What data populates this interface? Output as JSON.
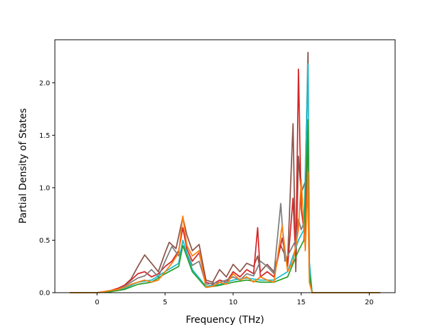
{
  "chart_data": {
    "type": "line",
    "title": "",
    "xlabel": "Frequency (THz)",
    "ylabel": "Partial Density of States",
    "xlim": [
      -3.1,
      21.9
    ],
    "ylim": [
      0.0,
      2.41
    ],
    "xticks": [
      0,
      5,
      10,
      15,
      20
    ],
    "xtick_labels": [
      "0",
      "5",
      "10",
      "15",
      "20"
    ],
    "yticks": [
      0.0,
      0.5,
      1.0,
      1.5,
      2.0
    ],
    "ytick_labels": [
      "0.0",
      "0.5",
      "1.0",
      "1.5",
      "2.0"
    ],
    "grid": false,
    "legend": "none",
    "x_range_of_curves": [
      -2.0,
      20.8
    ],
    "series": [
      {
        "color": "#8c564b",
        "points": [
          [
            -2.0,
            0
          ],
          [
            0.0,
            0
          ],
          [
            0.5,
            0.01
          ],
          [
            1.0,
            0.02
          ],
          [
            1.5,
            0.04
          ],
          [
            2.0,
            0.07
          ],
          [
            2.5,
            0.13
          ],
          [
            3.0,
            0.25
          ],
          [
            3.5,
            0.36
          ],
          [
            4.0,
            0.28
          ],
          [
            4.5,
            0.2
          ],
          [
            5.0,
            0.38
          ],
          [
            5.3,
            0.48
          ],
          [
            5.8,
            0.42
          ],
          [
            6.3,
            0.72
          ],
          [
            6.6,
            0.55
          ],
          [
            7.0,
            0.4
          ],
          [
            7.5,
            0.46
          ],
          [
            8.0,
            0.12
          ],
          [
            8.5,
            0.1
          ],
          [
            9.0,
            0.22
          ],
          [
            9.5,
            0.15
          ],
          [
            10.0,
            0.27
          ],
          [
            10.5,
            0.2
          ],
          [
            11.0,
            0.28
          ],
          [
            11.5,
            0.25
          ],
          [
            11.8,
            0.35
          ],
          [
            12.0,
            0.2
          ],
          [
            12.5,
            0.27
          ],
          [
            13.0,
            0.2
          ],
          [
            13.5,
            0.45
          ],
          [
            14.0,
            0.3
          ],
          [
            14.4,
            1.61
          ],
          [
            14.6,
            0.2
          ],
          [
            14.8,
            1.3
          ],
          [
            15.0,
            0.95
          ],
          [
            15.3,
            1.06
          ],
          [
            15.5,
            2.29
          ],
          [
            15.6,
            0.2
          ],
          [
            15.8,
            0.0
          ],
          [
            20.8,
            0.0
          ]
        ]
      },
      {
        "color": "#d62728",
        "points": [
          [
            -2.0,
            0
          ],
          [
            0.0,
            0
          ],
          [
            0.5,
            0.01
          ],
          [
            1.0,
            0.02
          ],
          [
            1.5,
            0.04
          ],
          [
            2.0,
            0.07
          ],
          [
            2.5,
            0.12
          ],
          [
            3.0,
            0.18
          ],
          [
            3.5,
            0.2
          ],
          [
            4.0,
            0.15
          ],
          [
            4.5,
            0.18
          ],
          [
            5.0,
            0.25
          ],
          [
            5.5,
            0.3
          ],
          [
            6.0,
            0.4
          ],
          [
            6.3,
            0.62
          ],
          [
            6.6,
            0.42
          ],
          [
            7.0,
            0.3
          ],
          [
            7.5,
            0.38
          ],
          [
            8.0,
            0.1
          ],
          [
            8.5,
            0.08
          ],
          [
            9.0,
            0.12
          ],
          [
            9.5,
            0.1
          ],
          [
            10.0,
            0.2
          ],
          [
            10.5,
            0.15
          ],
          [
            11.0,
            0.22
          ],
          [
            11.5,
            0.18
          ],
          [
            11.8,
            0.62
          ],
          [
            12.0,
            0.15
          ],
          [
            12.5,
            0.2
          ],
          [
            13.0,
            0.15
          ],
          [
            13.6,
            0.52
          ],
          [
            14.0,
            0.25
          ],
          [
            14.4,
            0.9
          ],
          [
            14.6,
            0.3
          ],
          [
            14.8,
            2.13
          ],
          [
            15.0,
            0.8
          ],
          [
            15.3,
            0.5
          ],
          [
            15.5,
            1.6
          ],
          [
            15.6,
            0.2
          ],
          [
            15.8,
            0.0
          ],
          [
            20.8,
            0.0
          ]
        ]
      },
      {
        "color": "#7f7f7f",
        "points": [
          [
            -2.0,
            0
          ],
          [
            0.0,
            0
          ],
          [
            0.5,
            0.01
          ],
          [
            1.0,
            0.02
          ],
          [
            1.5,
            0.03
          ],
          [
            2.0,
            0.06
          ],
          [
            2.5,
            0.1
          ],
          [
            3.0,
            0.14
          ],
          [
            3.5,
            0.16
          ],
          [
            4.0,
            0.22
          ],
          [
            4.5,
            0.15
          ],
          [
            5.0,
            0.3
          ],
          [
            5.5,
            0.44
          ],
          [
            6.0,
            0.35
          ],
          [
            6.3,
            0.45
          ],
          [
            6.6,
            0.38
          ],
          [
            7.0,
            0.26
          ],
          [
            7.5,
            0.3
          ],
          [
            8.0,
            0.08
          ],
          [
            8.5,
            0.09
          ],
          [
            9.0,
            0.1
          ],
          [
            9.5,
            0.12
          ],
          [
            10.0,
            0.15
          ],
          [
            10.5,
            0.12
          ],
          [
            11.0,
            0.18
          ],
          [
            11.5,
            0.16
          ],
          [
            12.0,
            0.3
          ],
          [
            12.5,
            0.25
          ],
          [
            13.0,
            0.18
          ],
          [
            13.5,
            0.85
          ],
          [
            13.8,
            0.3
          ],
          [
            14.2,
            0.4
          ],
          [
            14.6,
            0.5
          ],
          [
            14.8,
            0.7
          ],
          [
            15.0,
            0.6
          ],
          [
            15.3,
            0.7
          ],
          [
            15.5,
            0.9
          ],
          [
            15.6,
            0.1
          ],
          [
            15.8,
            0.0
          ],
          [
            20.8,
            0.0
          ]
        ]
      },
      {
        "color": "#17becf",
        "points": [
          [
            -2.0,
            0
          ],
          [
            0.0,
            0
          ],
          [
            1.0,
            0.01
          ],
          [
            2.0,
            0.04
          ],
          [
            3.0,
            0.1
          ],
          [
            4.0,
            0.12
          ],
          [
            5.0,
            0.2
          ],
          [
            6.0,
            0.28
          ],
          [
            6.3,
            0.5
          ],
          [
            7.0,
            0.22
          ],
          [
            8.0,
            0.06
          ],
          [
            9.0,
            0.08
          ],
          [
            10.0,
            0.12
          ],
          [
            11.0,
            0.14
          ],
          [
            12.0,
            0.12
          ],
          [
            13.0,
            0.12
          ],
          [
            14.0,
            0.2
          ],
          [
            14.8,
            0.5
          ],
          [
            15.2,
            0.6
          ],
          [
            15.5,
            2.18
          ],
          [
            15.6,
            0.3
          ],
          [
            15.8,
            0.0
          ],
          [
            20.8,
            0.0
          ]
        ]
      },
      {
        "color": "#2ca02c",
        "points": [
          [
            -2.0,
            0
          ],
          [
            0.0,
            0
          ],
          [
            1.0,
            0.01
          ],
          [
            2.0,
            0.03
          ],
          [
            3.0,
            0.08
          ],
          [
            4.0,
            0.1
          ],
          [
            5.0,
            0.18
          ],
          [
            6.0,
            0.25
          ],
          [
            6.3,
            0.45
          ],
          [
            7.0,
            0.2
          ],
          [
            8.0,
            0.05
          ],
          [
            9.0,
            0.07
          ],
          [
            10.0,
            0.1
          ],
          [
            11.0,
            0.12
          ],
          [
            12.0,
            0.1
          ],
          [
            13.0,
            0.1
          ],
          [
            14.0,
            0.15
          ],
          [
            14.8,
            0.4
          ],
          [
            15.2,
            0.5
          ],
          [
            15.5,
            1.65
          ],
          [
            15.6,
            0.2
          ],
          [
            15.8,
            0.0
          ],
          [
            20.8,
            0.0
          ]
        ]
      },
      {
        "color": "#ff7f0e",
        "points": [
          [
            -2.0,
            0
          ],
          [
            0.0,
            0
          ],
          [
            0.5,
            0.01
          ],
          [
            1.0,
            0.02
          ],
          [
            1.5,
            0.03
          ],
          [
            2.0,
            0.05
          ],
          [
            2.5,
            0.08
          ],
          [
            3.0,
            0.1
          ],
          [
            3.5,
            0.12
          ],
          [
            4.0,
            0.1
          ],
          [
            4.5,
            0.12
          ],
          [
            5.0,
            0.2
          ],
          [
            5.5,
            0.28
          ],
          [
            6.0,
            0.38
          ],
          [
            6.3,
            0.73
          ],
          [
            6.6,
            0.45
          ],
          [
            7.0,
            0.35
          ],
          [
            7.5,
            0.4
          ],
          [
            8.0,
            0.05
          ],
          [
            8.5,
            0.06
          ],
          [
            9.0,
            0.1
          ],
          [
            9.5,
            0.08
          ],
          [
            10.0,
            0.18
          ],
          [
            10.5,
            0.12
          ],
          [
            11.0,
            0.15
          ],
          [
            11.5,
            0.1
          ],
          [
            12.0,
            0.15
          ],
          [
            12.5,
            0.12
          ],
          [
            13.0,
            0.1
          ],
          [
            13.6,
            0.64
          ],
          [
            14.0,
            0.2
          ],
          [
            14.4,
            0.3
          ],
          [
            14.8,
            0.6
          ],
          [
            15.0,
            1.08
          ],
          [
            15.3,
            0.4
          ],
          [
            15.5,
            1.15
          ],
          [
            15.6,
            0.1
          ],
          [
            15.8,
            0.0
          ],
          [
            20.8,
            0.0
          ]
        ]
      }
    ]
  }
}
